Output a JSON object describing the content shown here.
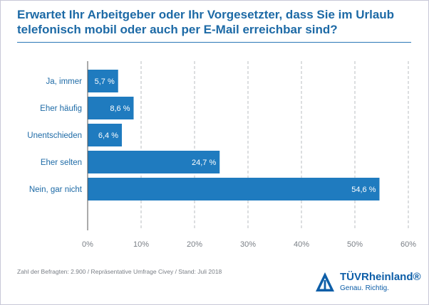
{
  "chart_data": {
    "type": "bar",
    "orientation": "horizontal",
    "title": "Erwartet Ihr Arbeitgeber oder Ihr Vorgesetzter, dass Sie im Urlaub telefonisch mobil oder auch per E-Mail erreichbar sind?",
    "categories": [
      "Ja, immer",
      "Eher häufig",
      "Unentschieden",
      "Eher selten",
      "Nein, gar nicht"
    ],
    "values": [
      5.7,
      8.6,
      6.4,
      24.7,
      54.6
    ],
    "value_labels": [
      "5,7 %",
      "8,6 %",
      "6,4 %",
      "24,7 %",
      "54,6 %"
    ],
    "xlim": [
      0,
      60
    ],
    "x_ticks": [
      0,
      10,
      20,
      30,
      40,
      50,
      60
    ],
    "x_tick_labels": [
      "0%",
      "10%",
      "20%",
      "30%",
      "40%",
      "50%",
      "60%"
    ],
    "grid": "vertical dashed",
    "bar_color": "#1f7bbf",
    "xlabel": "",
    "ylabel": ""
  },
  "source": "Zahl der Befragten: 2.900 / Repräsentative Umfrage Civey / Stand: Juli 2018",
  "logo": {
    "name": "TÜVRheinland®",
    "tagline": "Genau. Richtig."
  },
  "colors": {
    "title": "#1d6aa6",
    "bar": "#1f7bbf",
    "logo": "#0d5ea8"
  }
}
